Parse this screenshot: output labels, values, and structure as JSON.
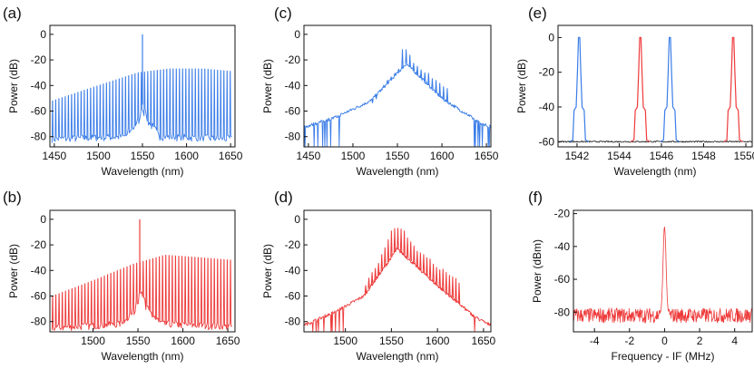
{
  "chart_data": [
    {
      "id": "a",
      "panel_label": "(a)",
      "type": "line",
      "style": "comb",
      "xlabel": "Wavelength (nm)",
      "ylabel": "Power (dB)",
      "xlim": [
        1445,
        1655
      ],
      "ylim": [
        -88,
        7
      ],
      "xticks": [
        1450,
        1500,
        1550,
        1600,
        1650
      ],
      "yticks": [
        -80,
        -60,
        -40,
        -20,
        0
      ],
      "xtick_labels": [
        "1450",
        "1500",
        "1550",
        "1600",
        "1650"
      ],
      "ytick_labels": [
        "-80",
        "-60",
        "-40",
        "-20",
        "0"
      ],
      "color": "#3b7de8",
      "carrier": 1550,
      "spacing": 3.6,
      "teeth_from": 1448,
      "teeth_to": 1652,
      "envelope": [
        [
          1448,
          -52
        ],
        [
          1500,
          -40
        ],
        [
          1545,
          -30
        ],
        [
          1580,
          -27
        ],
        [
          1620,
          -27
        ],
        [
          1652,
          -29
        ]
      ],
      "noise_floor": [
        [
          1448,
          -82
        ],
        [
          1530,
          -80
        ],
        [
          1545,
          -68
        ],
        [
          1550,
          -55
        ],
        [
          1555,
          -68
        ],
        [
          1570,
          -80
        ],
        [
          1652,
          -82
        ]
      ],
      "peak": [
        1550,
        0
      ],
      "tooth_width": 0.8
    },
    {
      "id": "b",
      "panel_label": "(b)",
      "type": "line",
      "style": "comb",
      "xlabel": "Wavelength (nm)",
      "ylabel": "Power (dB)",
      "xlim": [
        1452,
        1658
      ],
      "ylim": [
        -88,
        7
      ],
      "xticks": [
        1500,
        1550,
        1600,
        1650
      ],
      "yticks": [
        -80,
        -60,
        -40,
        -20,
        0
      ],
      "xtick_labels": [
        "1500",
        "1550",
        "1600",
        "1650"
      ],
      "ytick_labels": [
        "-80",
        "-60",
        "-40",
        "-20",
        "0"
      ],
      "color": "#ee3a3a",
      "carrier": 1552,
      "spacing": 3.6,
      "teeth_from": 1455,
      "teeth_to": 1655,
      "envelope": [
        [
          1455,
          -60
        ],
        [
          1500,
          -48
        ],
        [
          1545,
          -35
        ],
        [
          1580,
          -28
        ],
        [
          1620,
          -30
        ],
        [
          1655,
          -32
        ]
      ],
      "noise_floor": [
        [
          1455,
          -85
        ],
        [
          1530,
          -82
        ],
        [
          1545,
          -72
        ],
        [
          1552,
          -55
        ],
        [
          1559,
          -70
        ],
        [
          1575,
          -82
        ],
        [
          1655,
          -84
        ]
      ],
      "peak": [
        1552,
        0
      ],
      "tooth_width": 0.8
    },
    {
      "id": "c",
      "panel_label": "(c)",
      "type": "line",
      "style": "bumpcomb",
      "xlabel": "Wavelength (nm)",
      "ylabel": "Power (dB)",
      "xlim": [
        1445,
        1655
      ],
      "ylim": [
        -88,
        7
      ],
      "xticks": [
        1450,
        1500,
        1550,
        1600,
        1650
      ],
      "yticks": [
        -80,
        -60,
        -40,
        -20,
        0
      ],
      "xtick_labels": [
        "1450",
        "1500",
        "1550",
        "1600",
        "1650"
      ],
      "ytick_labels": [
        "-80",
        "-60",
        "-40",
        "-20",
        "0"
      ],
      "color": "#3b7de8",
      "spacing": 4.2,
      "teeth_from": 1522,
      "teeth_to": 1610,
      "envelope": [
        [
          1522,
          -52
        ],
        [
          1540,
          -34
        ],
        [
          1552,
          -26
        ],
        [
          1556,
          -10
        ],
        [
          1562,
          -12
        ],
        [
          1572,
          -24
        ],
        [
          1590,
          -32
        ],
        [
          1610,
          -42
        ]
      ],
      "base": [
        [
          1448,
          -72
        ],
        [
          1480,
          -65
        ],
        [
          1520,
          -52
        ],
        [
          1545,
          -34
        ],
        [
          1560,
          -23
        ],
        [
          1575,
          -33
        ],
        [
          1600,
          -50
        ],
        [
          1640,
          -68
        ],
        [
          1652,
          -72
        ]
      ],
      "tooth_width": 0.9
    },
    {
      "id": "d",
      "panel_label": "(d)",
      "type": "line",
      "style": "bumpcomb",
      "xlabel": "Wavelength (nm)",
      "ylabel": "Power (dB)",
      "xlim": [
        1455,
        1658
      ],
      "ylim": [
        -88,
        7
      ],
      "xticks": [
        1500,
        1550,
        1600,
        1650
      ],
      "yticks": [
        -80,
        -60,
        -40,
        -20,
        0
      ],
      "xtick_labels": [
        "1500",
        "1550",
        "1600",
        "1650"
      ],
      "ytick_labels": [
        "-80",
        "-60",
        "-40",
        "-20",
        "0"
      ],
      "color": "#ee3a3a",
      "spacing": 3.5,
      "teeth_from": 1522,
      "teeth_to": 1625,
      "envelope": [
        [
          1522,
          -50
        ],
        [
          1538,
          -30
        ],
        [
          1550,
          -8
        ],
        [
          1556,
          -4
        ],
        [
          1566,
          -10
        ],
        [
          1580,
          -24
        ],
        [
          1600,
          -35
        ],
        [
          1625,
          -48
        ]
      ],
      "base": [
        [
          1458,
          -82
        ],
        [
          1490,
          -72
        ],
        [
          1520,
          -60
        ],
        [
          1545,
          -35
        ],
        [
          1556,
          -23
        ],
        [
          1570,
          -32
        ],
        [
          1600,
          -52
        ],
        [
          1640,
          -76
        ],
        [
          1655,
          -82
        ]
      ],
      "tooth_width": 0.9
    },
    {
      "id": "e",
      "panel_label": "(e)",
      "type": "line",
      "style": "peaks",
      "xlabel": "Wavelength (nm)",
      "ylabel": "Power (dB)",
      "xlim": [
        1541.1,
        1550.3
      ],
      "ylim": [
        -63,
        7
      ],
      "xticks": [
        1542,
        1544,
        1546,
        1548,
        1550
      ],
      "yticks": [
        -60,
        -40,
        -20,
        0
      ],
      "xtick_labels": [
        "1542",
        "1544",
        "1546",
        "1548",
        "1550"
      ],
      "ytick_labels": [
        "-60",
        "-40",
        "-20",
        "0"
      ],
      "baseline_color": "#111111",
      "baseline": -60,
      "peaks": [
        {
          "x": 1542.1,
          "color": "#3b7de8"
        },
        {
          "x": 1545.0,
          "color": "#ee3a3a"
        },
        {
          "x": 1546.4,
          "color": "#3b7de8"
        },
        {
          "x": 1549.4,
          "color": "#ee3a3a"
        }
      ]
    },
    {
      "id": "f",
      "panel_label": "(f)",
      "type": "line",
      "style": "rf",
      "xlabel": "Frequency - IF (MHz)",
      "ylabel": "Power (dBm)",
      "xlim": [
        -5.2,
        5.0
      ],
      "ylim": [
        -92,
        -18
      ],
      "xticks": [
        -4,
        -2,
        0,
        2,
        4
      ],
      "yticks": [
        -80,
        -60,
        -40,
        -20
      ],
      "xtick_labels": [
        "-4",
        "-2",
        "0",
        "2",
        "4"
      ],
      "ytick_labels": [
        "-80",
        "-60",
        "-40",
        "-20"
      ],
      "color": "#ee3a3a",
      "noise_level": -82,
      "peak": [
        0,
        -28
      ]
    }
  ]
}
